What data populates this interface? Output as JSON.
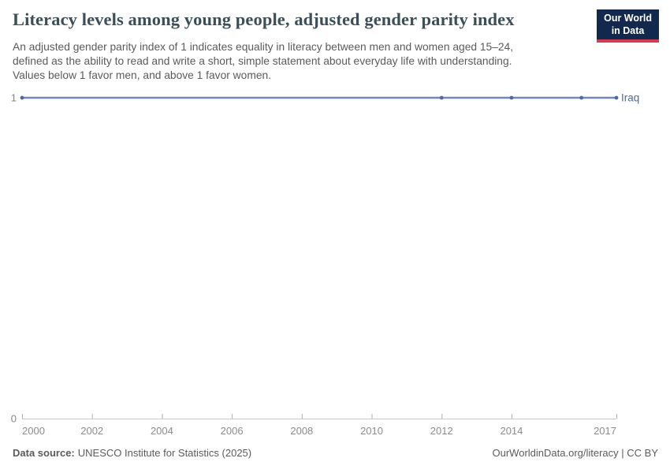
{
  "header": {
    "logo": {
      "line1": "Our World",
      "line2": "in Data"
    }
  },
  "chart_data": {
    "type": "line",
    "title": "Literacy levels among young people, adjusted gender parity index",
    "subtitle_lines": [
      "An adjusted gender parity index of 1 indicates equality in literacy between men and women aged 15–24,",
      "defined as the ability to read and write a short, simple statement about everyday life with understanding.",
      "Values below 1 favor men, and above 1 favor women."
    ],
    "xlabel": "",
    "ylabel": "",
    "xlim": [
      2000,
      2017
    ],
    "ylim": [
      0,
      1
    ],
    "grid": false,
    "legend_position": "end-of-line",
    "x_ticks": [
      {
        "value": 2000,
        "label": "2000"
      },
      {
        "value": 2002,
        "label": "2002"
      },
      {
        "value": 2004,
        "label": "2004"
      },
      {
        "value": 2006,
        "label": "2006"
      },
      {
        "value": 2008,
        "label": "2008"
      },
      {
        "value": 2010,
        "label": "2010"
      },
      {
        "value": 2012,
        "label": "2012"
      },
      {
        "value": 2014,
        "label": "2014"
      },
      {
        "value": 2017,
        "label": "2017"
      }
    ],
    "y_ticks": [
      {
        "value": 1,
        "label": "1"
      },
      {
        "value": 0,
        "label": "0"
      }
    ],
    "series": [
      {
        "name": "Iraq",
        "x": [
          2000,
          2012,
          2014,
          2016,
          2017
        ],
        "values": [
          1,
          1,
          1,
          1,
          1
        ]
      }
    ]
  },
  "footer": {
    "data_source_label": "Data source:",
    "data_source_value": "UNESCO Institute for Statistics (2025)",
    "credit": "OurWorldinData.org/literacy | CC BY"
  },
  "colors": {
    "title": "#3c4e56",
    "subtitle": "#5b5b5b",
    "line": "#7288b5",
    "marker": "#51699f",
    "series_label": "#4d6a9e",
    "axis_line": "#c9c9c9",
    "axis_tick": "#adadad",
    "x_tick_label": "#8c8c8c",
    "y_tick_label": "#858585",
    "logo_bg": "#12294d",
    "logo_red": "#d13d53"
  }
}
